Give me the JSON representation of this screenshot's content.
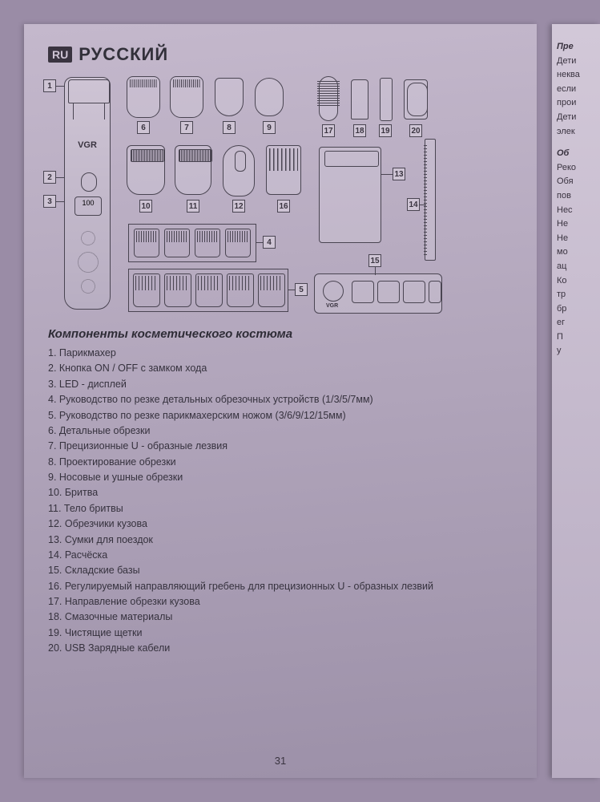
{
  "lang_badge": "RU",
  "lang_title": "РУССКИЙ",
  "trimmer_logo": "VGR",
  "trimmer_display": "100",
  "base_logo": "VGR",
  "section_title": "Компоненты косметического костюма",
  "components": [
    "1. Парикмахер",
    "2. Кнопка ON / OFF с замком хода",
    "3. LED - дисплей",
    "4. Руководство по резке детальных обрезочных устройств (1/3/5/7мм)",
    "5. Руководство по резке парикмахерским ножом (3/6/9/12/15мм)",
    "6. Детальные обрезки",
    "7. Прецизионные U - образные лезвия",
    "8. Проектирование обрезки",
    "9. Носовые и ушные обрезки",
    "10. Бритва",
    "11. Тело бритвы",
    "12. Обрезчики кузова",
    "13. Сумки для поездок",
    "14. Расчёска",
    "15. Складские базы",
    "16. Регулируемый направляющий гребень для прецизионных U - образных лезвий",
    "17. Направление обрезки кузова",
    "18. Смазочные материалы",
    "19. Чистящие щетки",
    "20. USB Зарядные кабели"
  ],
  "page_number": "31",
  "callouts": {
    "c1": "1",
    "c2": "2",
    "c3": "3",
    "c4": "4",
    "c5": "5",
    "c6": "6",
    "c7": "7",
    "c8": "8",
    "c9": "9",
    "c10": "10",
    "c11": "11",
    "c12": "12",
    "c13": "13",
    "c14": "14",
    "c15": "15",
    "c16": "16",
    "c17": "17",
    "c18": "18",
    "c19": "19",
    "c20": "20"
  },
  "comb_labels_small": [
    "1mm",
    "3mm",
    "5mm",
    "7mm"
  ],
  "comb_labels_big": [
    "3mm",
    "6mm",
    "9mm",
    "12mm",
    "15mm"
  ],
  "right_page": {
    "h1": "Пре",
    "l1": "Дети",
    "l2": "неква",
    "l3": "если",
    "l4": "прои",
    "l5": "Дети",
    "l6": "элек",
    "h2": "Об",
    "r1": "Реко",
    "r2": "Обя",
    "r3": "пов",
    "r4": "Нес",
    "r5": "Не",
    "r6": "Не",
    "r7": "мо",
    "r8": "ац",
    "r9": "Ко",
    "r10": "тр",
    "r11": "бр",
    "r12": "ег",
    "r13": "П",
    "r14": "у"
  }
}
